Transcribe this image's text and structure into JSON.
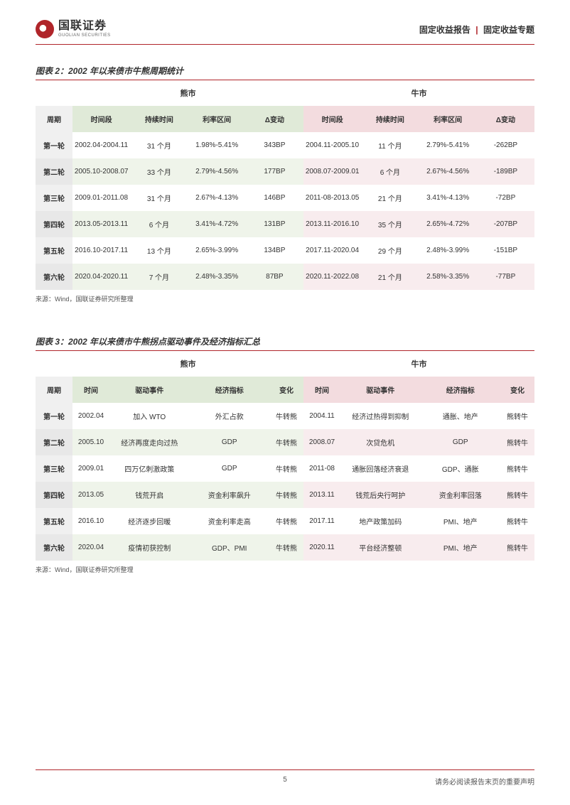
{
  "colors": {
    "accent": "#b0252a",
    "bear_bg": "#e0ead8",
    "bull_bg": "#f3dcdf",
    "grey_bg": "#f0f0f0"
  },
  "header": {
    "logo_cn": "国联证券",
    "logo_en": "GUOLIAN SECURITIES",
    "right_a": "固定收益报告",
    "right_b": "固定收益专题"
  },
  "table2": {
    "title": "图表 2：2002 年以来债市牛熊周期统计",
    "super": {
      "bear": "熊市",
      "bull": "牛市"
    },
    "cols": {
      "cycle": "周期",
      "period": "时间段",
      "dur": "持续时间",
      "range": "利率区间",
      "delta": "Δ变动"
    },
    "rows": [
      {
        "cycle": "第一轮",
        "bear": {
          "period": "2002.04-2004.11",
          "dur": "31 个月",
          "range": "1.98%-5.41%",
          "delta": "343BP"
        },
        "bull": {
          "period": "2004.11-2005.10",
          "dur": "11 个月",
          "range": "2.79%-5.41%",
          "delta": "-262BP"
        }
      },
      {
        "cycle": "第二轮",
        "bear": {
          "period": "2005.10-2008.07",
          "dur": "33 个月",
          "range": "2.79%-4.56%",
          "delta": "177BP"
        },
        "bull": {
          "period": "2008.07-2009.01",
          "dur": "6 个月",
          "range": "2.67%-4.56%",
          "delta": "-189BP"
        }
      },
      {
        "cycle": "第三轮",
        "bear": {
          "period": "2009.01-2011.08",
          "dur": "31 个月",
          "range": "2.67%-4.13%",
          "delta": "146BP"
        },
        "bull": {
          "period": "2011-08-2013.05",
          "dur": "21 个月",
          "range": "3.41%-4.13%",
          "delta": "-72BP"
        }
      },
      {
        "cycle": "第四轮",
        "bear": {
          "period": "2013.05-2013.11",
          "dur": "6 个月",
          "range": "3.41%-4.72%",
          "delta": "131BP"
        },
        "bull": {
          "period": "2013.11-2016.10",
          "dur": "35 个月",
          "range": "2.65%-4.72%",
          "delta": "-207BP"
        }
      },
      {
        "cycle": "第五轮",
        "bear": {
          "period": "2016.10-2017.11",
          "dur": "13 个月",
          "range": "2.65%-3.99%",
          "delta": "134BP"
        },
        "bull": {
          "period": "2017.11-2020.04",
          "dur": "29 个月",
          "range": "2.48%-3.99%",
          "delta": "-151BP"
        }
      },
      {
        "cycle": "第六轮",
        "bear": {
          "period": "2020.04-2020.11",
          "dur": "7 个月",
          "range": "2.48%-3.35%",
          "delta": "87BP"
        },
        "bull": {
          "period": "2020.11-2022.08",
          "dur": "21 个月",
          "range": "2.58%-3.35%",
          "delta": "-77BP"
        }
      }
    ],
    "source": "来源：Wind，国联证券研究所整理"
  },
  "table3": {
    "title": "图表 3：2002 年以来债市牛熊拐点驱动事件及经济指标汇总",
    "super": {
      "bear": "熊市",
      "bull": "牛市"
    },
    "cols": {
      "cycle": "周期",
      "time": "时间",
      "event": "驱动事件",
      "ind": "经济指标",
      "chg": "变化"
    },
    "rows": [
      {
        "cycle": "第一轮",
        "bear": {
          "time": "2002.04",
          "event": "加入 WTO",
          "ind": "外汇占款",
          "chg": "牛转熊"
        },
        "bull": {
          "time": "2004.11",
          "event": "经济过热得到抑制",
          "ind": "通胀、地产",
          "chg": "熊转牛"
        }
      },
      {
        "cycle": "第二轮",
        "bear": {
          "time": "2005.10",
          "event": "经济再度走向过热",
          "ind": "GDP",
          "chg": "牛转熊"
        },
        "bull": {
          "time": "2008.07",
          "event": "次贷危机",
          "ind": "GDP",
          "chg": "熊转牛"
        }
      },
      {
        "cycle": "第三轮",
        "bear": {
          "time": "2009.01",
          "event": "四万亿刺激政策",
          "ind": "GDP",
          "chg": "牛转熊"
        },
        "bull": {
          "time": "2011-08",
          "event": "通胀回落经济衰退",
          "ind": "GDP、通胀",
          "chg": "熊转牛"
        }
      },
      {
        "cycle": "第四轮",
        "bear": {
          "time": "2013.05",
          "event": "钱荒开启",
          "ind": "资金利率飙升",
          "chg": "牛转熊"
        },
        "bull": {
          "time": "2013.11",
          "event": "钱荒后央行呵护",
          "ind": "资金利率回落",
          "chg": "熊转牛"
        }
      },
      {
        "cycle": "第五轮",
        "bear": {
          "time": "2016.10",
          "event": "经济逐步回暖",
          "ind": "资金利率走高",
          "chg": "牛转熊"
        },
        "bull": {
          "time": "2017.11",
          "event": "地产政策加码",
          "ind": "PMI、地产",
          "chg": "熊转牛"
        }
      },
      {
        "cycle": "第六轮",
        "bear": {
          "time": "2020.04",
          "event": "疫情初获控制",
          "ind": "GDP、PMI",
          "chg": "牛转熊"
        },
        "bull": {
          "time": "2020.11",
          "event": "平台经济整顿",
          "ind": "PMI、地产",
          "chg": "熊转牛"
        }
      }
    ],
    "source": "来源：Wind，国联证券研究所整理"
  },
  "footer": {
    "page": "5",
    "disclaimer": "请务必阅读报告末页的重要声明"
  }
}
